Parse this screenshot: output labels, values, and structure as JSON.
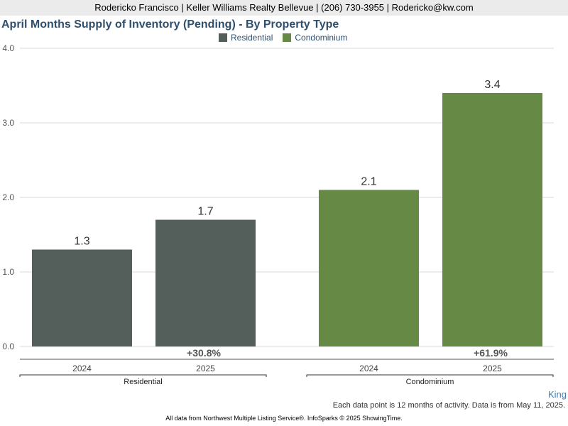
{
  "header": {
    "contact": "Rodericko Francisco | Keller Williams Realty Bellevue | (206) 730-3955 | Rodericko@kw.com"
  },
  "chart_data": {
    "type": "bar",
    "title": "April Months Supply of Inventory (Pending) - By Property Type",
    "ylim": [
      0,
      4
    ],
    "yticks": [
      "0.0",
      "1.0",
      "2.0",
      "3.0",
      "4.0"
    ],
    "grid": true,
    "legend_position": "top-center",
    "groups": [
      {
        "name": "Residential",
        "color": "#545e5a",
        "categories": [
          "2024",
          "2025"
        ],
        "values": [
          1.3,
          1.7
        ],
        "labels": [
          "1.3",
          "1.7"
        ],
        "change": "+30.8%"
      },
      {
        "name": "Condominium",
        "color": "#678946",
        "categories": [
          "2024",
          "2025"
        ],
        "values": [
          2.1,
          3.4
        ],
        "labels": [
          "2.1",
          "3.4"
        ],
        "change": "+61.9%"
      }
    ]
  },
  "footer": {
    "region": "King",
    "note": "Each data point is 12 months of activity. Data is from May 11, 2025.",
    "source": "All data from Northwest Multiple Listing Service®. InfoSparks © 2025 ShowingTime."
  }
}
